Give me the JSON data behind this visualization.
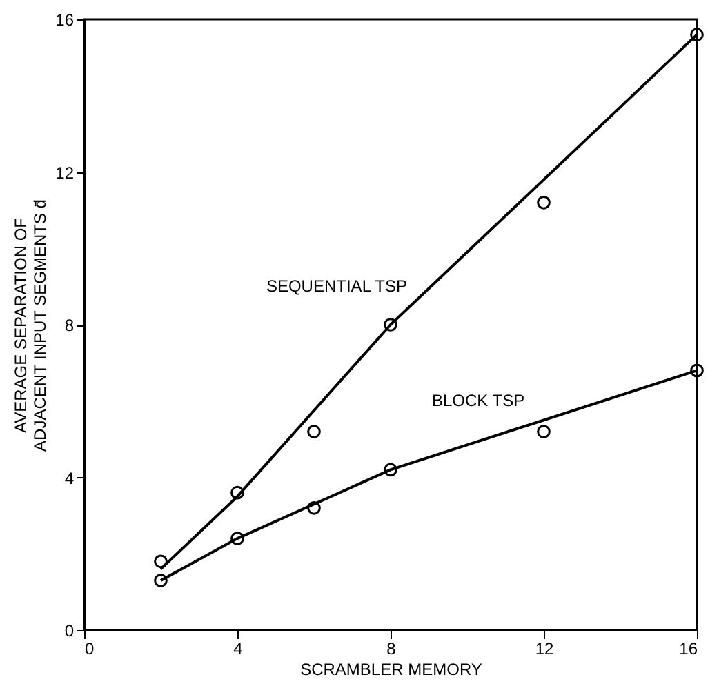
{
  "chart_data": {
    "type": "scatter",
    "xlabel": "SCRAMBLER MEMORY",
    "ylabel": "AVERAGE SEPARATION OF\nADJACENT INPUT SEGMENTS d̄",
    "x": [
      2,
      4,
      6,
      8,
      12,
      16
    ],
    "series": [
      {
        "color": "#000000",
        "marker": "circle",
        "values": [
          1.8,
          3.6,
          5.2,
          8.0,
          11.2,
          15.6
        ]
      },
      {
        "color": "#000000",
        "marker": "circle",
        "values": [
          1.3,
          2.4,
          3.2,
          4.2,
          5.2,
          6.8
        ]
      },
      {
        "type": "line",
        "name": "SEQUENTIAL TSP",
        "color": "#000000",
        "marker": "none",
        "x": [
          2,
          4,
          8,
          16
        ],
        "values": [
          1.6,
          3.5,
          8.0,
          15.6
        ]
      },
      {
        "type": "line",
        "name": "BLOCK TSP",
        "color": "#000000",
        "marker": "none",
        "x": [
          2,
          4,
          8,
          16
        ],
        "values": [
          1.3,
          2.4,
          4.2,
          6.8
        ]
      }
    ],
    "legend": false,
    "xlim": [
      0,
      16
    ],
    "xticks": [
      0,
      4,
      8,
      12,
      16
    ],
    "ylim": [
      0,
      16
    ],
    "yticks": [
      0,
      4,
      8,
      12,
      16
    ],
    "grid": false
  }
}
